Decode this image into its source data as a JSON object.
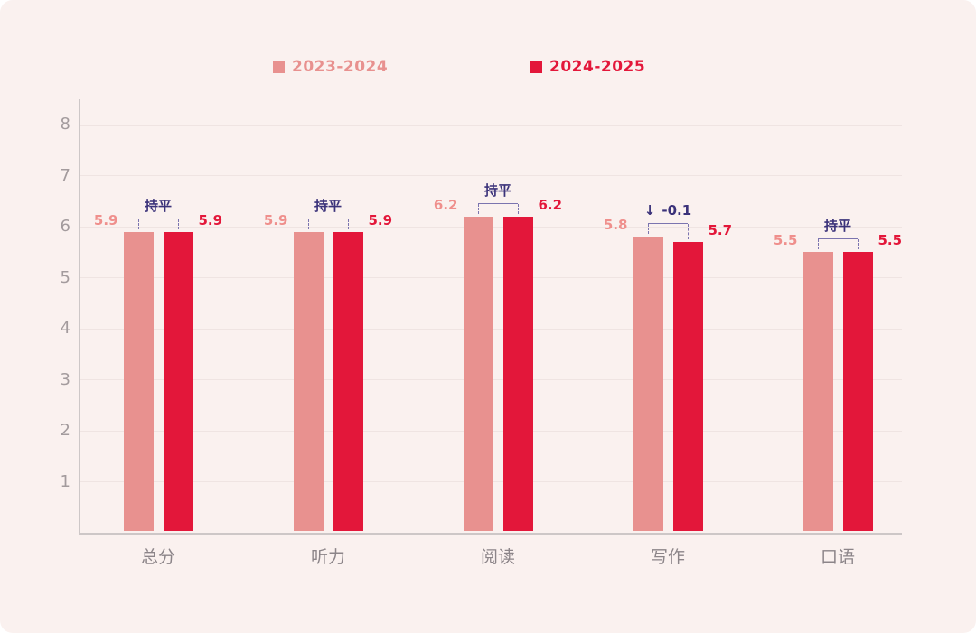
{
  "chart_data": {
    "type": "bar",
    "title": "",
    "categories": [
      "总分",
      "听力",
      "阅读",
      "写作",
      "口语"
    ],
    "series": [
      {
        "name": "2023-2024",
        "color": "#e8918f",
        "values": [
          5.9,
          5.9,
          6.2,
          5.8,
          5.5
        ]
      },
      {
        "name": "2024-2025",
        "color": "#e3173a",
        "values": [
          5.9,
          5.9,
          6.2,
          5.7,
          5.5
        ]
      }
    ],
    "annotations": [
      {
        "label": "持平"
      },
      {
        "label": "持平"
      },
      {
        "label": "持平"
      },
      {
        "arrow": "↓",
        "label": "-0.1"
      },
      {
        "label": "持平"
      }
    ],
    "ylim": [
      0,
      8
    ],
    "yticks": [
      1,
      2,
      3,
      4,
      5,
      6,
      7,
      8
    ],
    "grid": true,
    "legend_position": "top"
  },
  "colors": {
    "background": "#faf1ef",
    "bar_2023_2024": "#e8918f",
    "bar_2024_2025": "#e3173a",
    "value_label_2023": "#ef8f8c",
    "value_label_2024": "#e3173a",
    "annotation_text": "#3b327a",
    "bracket_line": "#7b74af",
    "gridline": "#efe4e2",
    "axis_line": "#cdc7c7",
    "ytick_text": "#a39b9d",
    "category_text": "#8c8589"
  }
}
